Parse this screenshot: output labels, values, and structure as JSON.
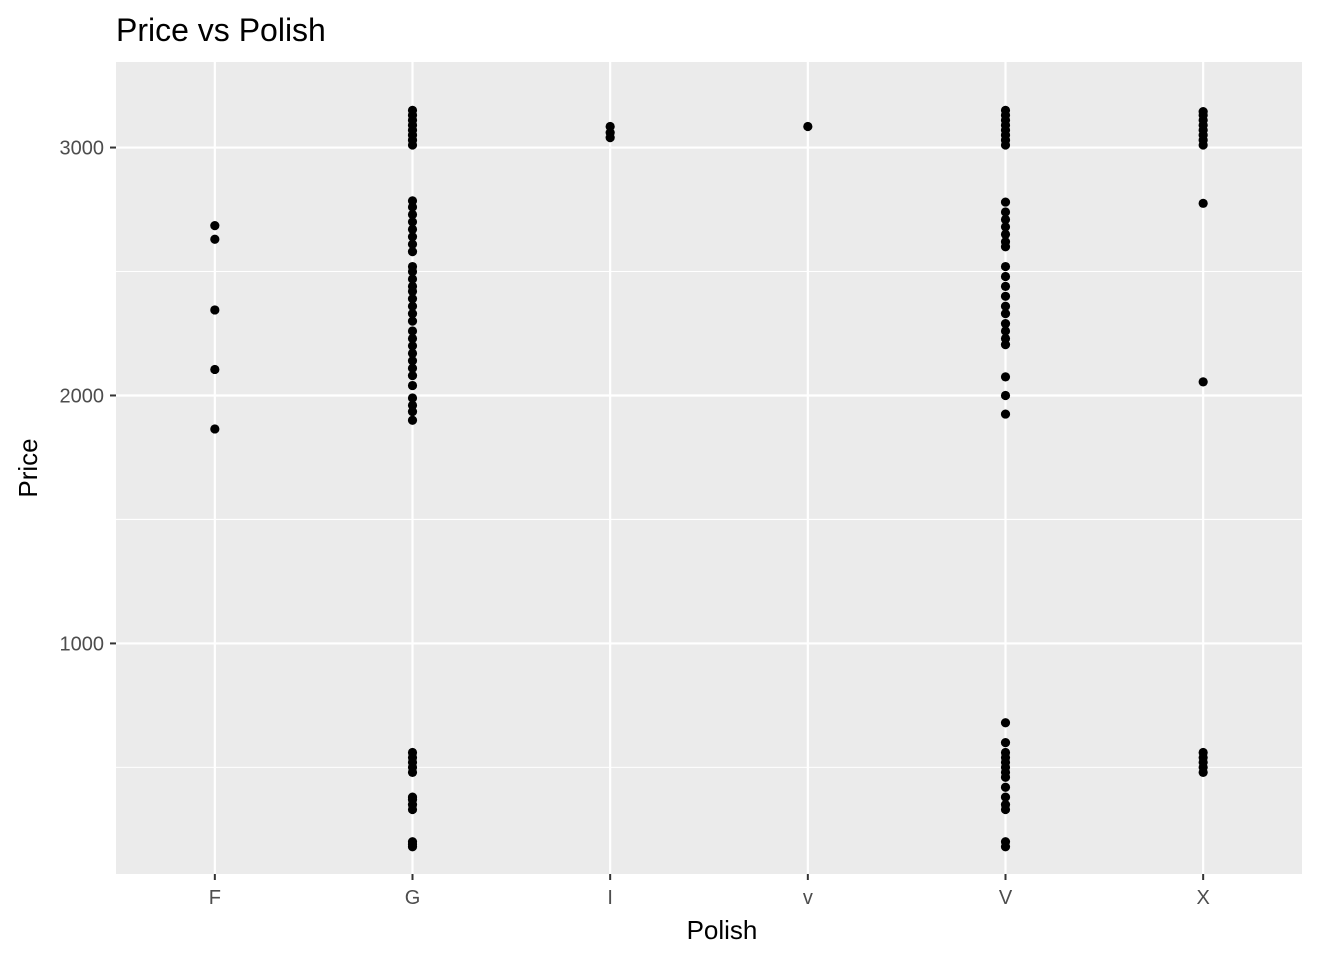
{
  "chart_data": {
    "type": "scatter",
    "title": "Price vs Polish",
    "xlabel": "Polish",
    "ylabel": "Price",
    "categories": [
      "F",
      "G",
      "I",
      "v",
      "V",
      "X"
    ],
    "ylim": [
      70,
      3345
    ],
    "yticks": [
      1000,
      2000,
      3000
    ],
    "grid": true,
    "point_color": "#000000",
    "panel_color": "#ebebeb",
    "grid_color": "#ffffff",
    "points": {
      "F": [
        1865,
        2105,
        2345,
        2630,
        2685
      ],
      "G": [
        180,
        190,
        200,
        330,
        350,
        370,
        380,
        480,
        500,
        520,
        540,
        560,
        1900,
        1935,
        1960,
        1990,
        2040,
        2080,
        2110,
        2140,
        2170,
        2200,
        2230,
        2260,
        2300,
        2330,
        2360,
        2390,
        2420,
        2440,
        2470,
        2500,
        2520,
        2580,
        2610,
        2640,
        2670,
        2700,
        2730,
        2760,
        2785,
        3010,
        3030,
        3050,
        3070,
        3090,
        3110,
        3130,
        3150
      ],
      "I": [
        3040,
        3060,
        3085
      ],
      "v": [
        3085
      ],
      "V": [
        180,
        200,
        330,
        350,
        380,
        420,
        460,
        480,
        500,
        520,
        540,
        560,
        600,
        680,
        1925,
        2000,
        2075,
        2205,
        2230,
        2260,
        2290,
        2330,
        2360,
        2400,
        2440,
        2480,
        2520,
        2600,
        2620,
        2650,
        2680,
        2710,
        2740,
        2780,
        3010,
        3030,
        3050,
        3070,
        3090,
        3110,
        3130,
        3150
      ],
      "X": [
        480,
        500,
        520,
        540,
        560,
        2055,
        2775,
        3010,
        3030,
        3050,
        3070,
        3090,
        3110,
        3130,
        3145
      ]
    }
  }
}
